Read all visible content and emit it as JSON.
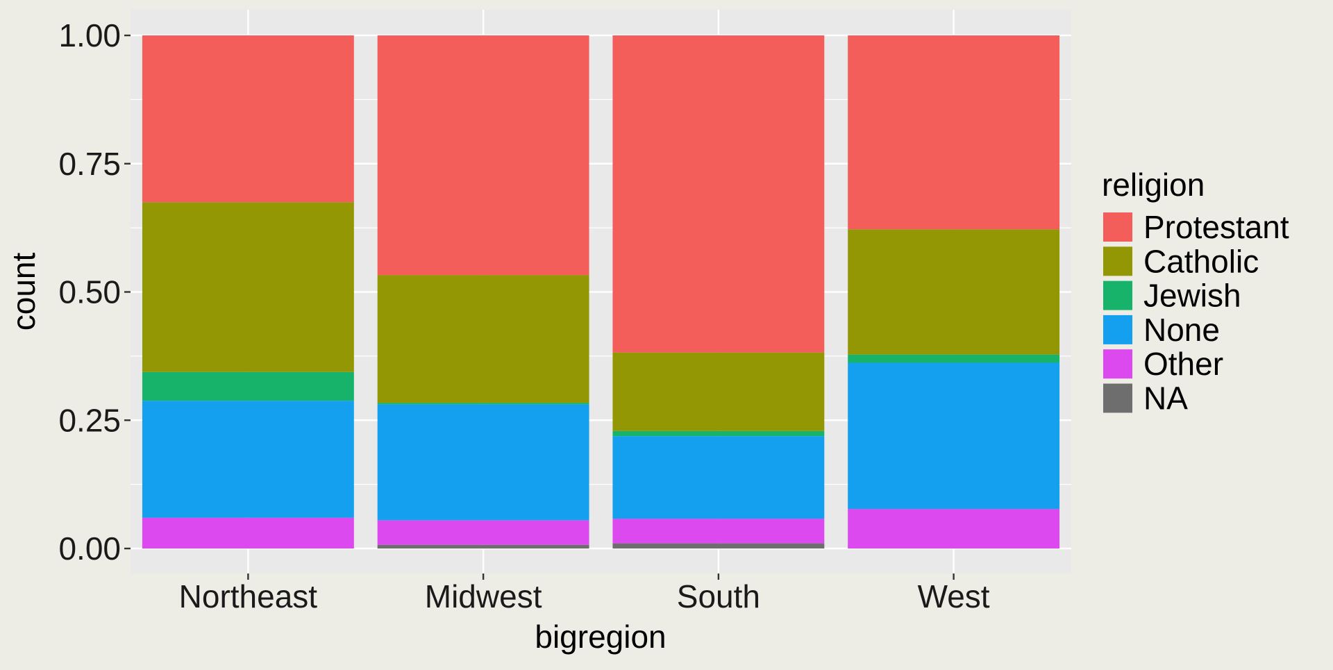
{
  "chart_data": {
    "type": "bar",
    "stacked": true,
    "position": "fill",
    "xlabel": "bigregion",
    "ylabel": "count",
    "ylim": [
      0,
      1
    ],
    "yticks": [
      "0.00",
      "0.25",
      "0.50",
      "0.75",
      "1.00"
    ],
    "categories": [
      "Northeast",
      "Midwest",
      "South",
      "West"
    ],
    "legend": {
      "title": "religion",
      "placement": "right"
    },
    "series": [
      {
        "name": "Protestant",
        "color": "#F35E5A",
        "values": [
          0.325,
          0.467,
          0.618,
          0.378
        ]
      },
      {
        "name": "Catholic",
        "color": "#929703",
        "values": [
          0.331,
          0.249,
          0.153,
          0.244
        ]
      },
      {
        "name": "Jewish",
        "color": "#17B36B",
        "values": [
          0.056,
          0.003,
          0.01,
          0.016
        ]
      },
      {
        "name": "None",
        "color": "#14A0EF",
        "values": [
          0.228,
          0.226,
          0.161,
          0.285
        ]
      },
      {
        "name": "Other",
        "color": "#DC49EE",
        "values": [
          0.06,
          0.048,
          0.048,
          0.077
        ]
      },
      {
        "name": "NA",
        "color": "#6E6E6E",
        "values": [
          0.0,
          0.007,
          0.01,
          0.0
        ]
      }
    ],
    "grid": true,
    "panel_background": "#E9E9E9",
    "grid_color": "#FFFFFF"
  }
}
